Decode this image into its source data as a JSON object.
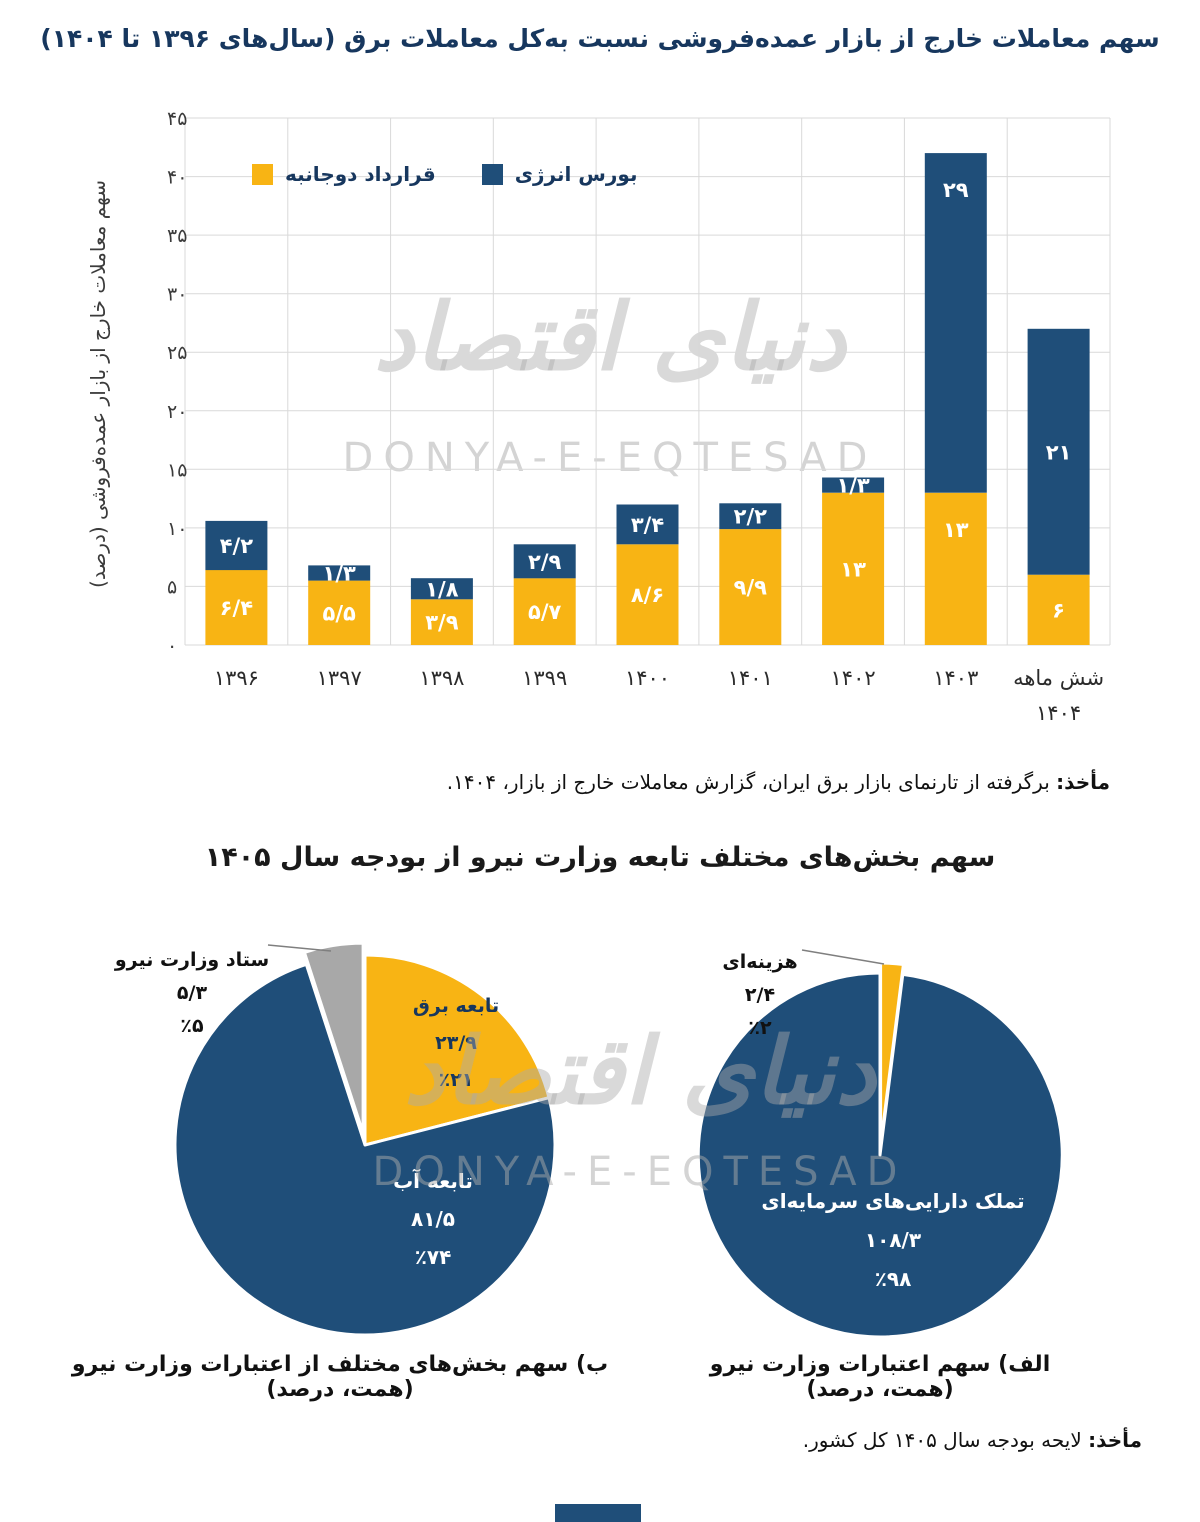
{
  "watermark": {
    "persian": "دنیای اقتصاد",
    "latin": "DONYA-E-EQTESAD"
  },
  "colors": {
    "yellow": "#F8B414",
    "navy": "#1F4E79",
    "gray": "#A8A8A8",
    "title_navy": "#17375E",
    "grid": "#D9D9D9"
  },
  "bar_section": {
    "source_label": "مأخذ:",
    "source_text": " برگرفته از تارنمای بازار برق ایران، گزارش معاملات خارج از بازار، ۱۴۰۴."
  },
  "pie_section": {
    "title": "سهم بخش‌های مختلف تابعه وزارت نیرو از بودجه سال ۱۴۰۵",
    "source_label": "مأخذ:",
    "source_text": " لایحه بودجه سال ۱۴۰۵ کل کشور."
  },
  "chart_data": [
    {
      "id": "otc-transactions-share",
      "type": "bar",
      "stacked": true,
      "title": "سهم معاملات خارج از بازار عمده‌فروشی نسبت به‌کل معاملات برق (سال‌های ۱۳۹۶ تا ۱۴۰۴)",
      "ylabel": "سهم معاملات خارج از بازار عمده‌فروشی (درصد)",
      "ylim": [
        0,
        45
      ],
      "ytick_step": 5,
      "ytick_labels": [
        "۰",
        "۵",
        "۱۰",
        "۱۵",
        "۲۰",
        "۲۵",
        "۳۰",
        "۳۵",
        "۴۰",
        "۴۵"
      ],
      "grid": true,
      "legend_position": "inside-top-right",
      "categories": [
        "۱۳۹۶",
        "۱۳۹۷",
        "۱۳۹۸",
        "۱۳۹۹",
        "۱۴۰۰",
        "۱۴۰۱",
        "۱۴۰۲",
        "۱۴۰۳",
        "شش ماهه\n۱۴۰۴"
      ],
      "series": [
        {
          "name": "قرارداد دوجانبه",
          "color": "#F8B414",
          "values": [
            6.4,
            5.5,
            3.9,
            5.7,
            8.6,
            9.9,
            13,
            13,
            6
          ],
          "labels": [
            "۶/۴",
            "۵/۵",
            "۳/۹",
            "۵/۷",
            "۸/۶",
            "۹/۹",
            "۱۳",
            "۱۳",
            "۶"
          ]
        },
        {
          "name": "بورس انرژی",
          "color": "#1F4E79",
          "values": [
            4.2,
            1.3,
            1.8,
            2.9,
            3.4,
            2.2,
            1.3,
            29,
            21
          ],
          "labels": [
            "۴/۲",
            "۱/۳",
            "۱/۸",
            "۲/۹",
            "۳/۴",
            "۲/۲",
            "۱/۳",
            "۲۹",
            "۲۱"
          ]
        }
      ]
    },
    {
      "id": "ministry-sections-budget-share",
      "type": "pie",
      "caption": "ب) سهم بخش‌های مختلف از اعتبارات وزارت نیرو (همت، درصد)",
      "slices": [
        {
          "name": "تابعه برق",
          "amount": 23.9,
          "percent": 21,
          "amount_label": "۲۳/۹",
          "percent_label": "٪۲۱",
          "color": "#F8B414"
        },
        {
          "name": "تابعه آب",
          "amount": 81.5,
          "percent": 74,
          "amount_label": "۸۱/۵",
          "percent_label": "٪۷۴",
          "color": "#1F4E79"
        },
        {
          "name": "ستاد وزارت نیرو",
          "amount": 5.3,
          "percent": 5,
          "amount_label": "۵/۳",
          "percent_label": "٪۵",
          "color": "#A8A8A8"
        }
      ]
    },
    {
      "id": "ministry-credits-share",
      "type": "pie",
      "caption": "الف) سهم اعتبارات وزارت نیرو (همت، درصد)",
      "slices": [
        {
          "name": "هزینه‌ای",
          "amount": 2.4,
          "percent": 2,
          "amount_label": "۲/۴",
          "percent_label": "٪۲",
          "color": "#F8B414"
        },
        {
          "name": "تملک دارایی‌های سرمایه‌ای",
          "amount": 108.3,
          "percent": 98,
          "amount_label": "۱۰۸/۳",
          "percent_label": "٪۹۸",
          "color": "#1F4E79"
        }
      ]
    }
  ]
}
